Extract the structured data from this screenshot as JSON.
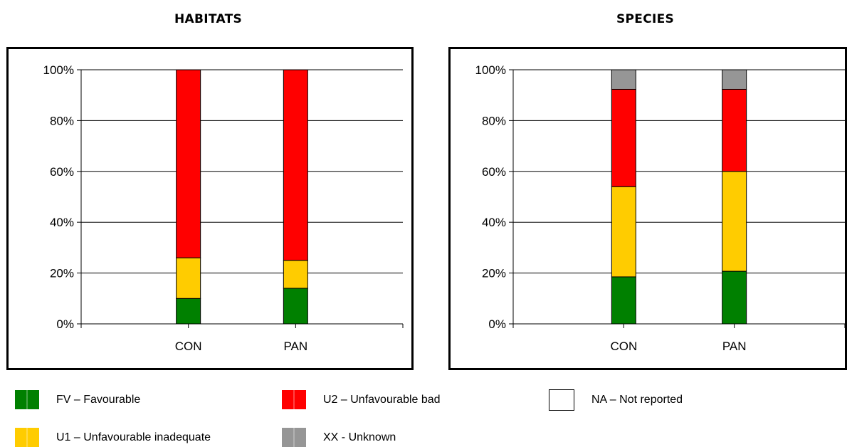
{
  "colors": {
    "FV": "#008000",
    "U1": "#ffcc00",
    "U2": "#ff0000",
    "XX": "#969696",
    "NA": "#ffffff"
  },
  "chart_data": [
    {
      "type": "bar",
      "stacked": true,
      "title": "HABITATS",
      "categories": [
        "CON",
        "PAN"
      ],
      "ylim": [
        0,
        100
      ],
      "yticks": [
        "0%",
        "20%",
        "40%",
        "60%",
        "80%",
        "100%"
      ],
      "grid": true,
      "series": [
        {
          "name": "FV – Favourable",
          "key": "FV",
          "values": [
            10,
            14
          ]
        },
        {
          "name": "U1 – Unfavourable inadequate",
          "key": "U1",
          "values": [
            16,
            11
          ]
        },
        {
          "name": "U2 – Unfavourable bad",
          "key": "U2",
          "values": [
            74,
            75
          ]
        },
        {
          "name": "XX - Unknown",
          "key": "XX",
          "values": [
            0,
            0
          ]
        },
        {
          "name": "NA – Not reported",
          "key": "NA",
          "values": [
            0,
            0
          ]
        }
      ]
    },
    {
      "type": "bar",
      "stacked": true,
      "title": "SPECIES",
      "categories": [
        "CON",
        "PAN"
      ],
      "ylim": [
        0,
        100
      ],
      "yticks": [
        "0%",
        "20%",
        "40%",
        "60%",
        "80%",
        "100%"
      ],
      "grid": true,
      "series": [
        {
          "name": "FV – Favourable",
          "key": "FV",
          "values": [
            18.5,
            20.7
          ]
        },
        {
          "name": "U1 – Unfavourable inadequate",
          "key": "U1",
          "values": [
            35.5,
            39.3
          ]
        },
        {
          "name": "U2 – Unfavourable bad",
          "key": "U2",
          "values": [
            38.3,
            32.3
          ]
        },
        {
          "name": "XX - Unknown",
          "key": "XX",
          "values": [
            7.7,
            7.7
          ]
        },
        {
          "name": "NA – Not reported",
          "key": "NA",
          "values": [
            0,
            0
          ]
        }
      ]
    }
  ],
  "legend": [
    {
      "key": "FV",
      "label": "FV – Favourable"
    },
    {
      "key": "U2",
      "label": "U2 – Unfavourable bad"
    },
    {
      "key": "NA",
      "label": "NA – Not reported"
    },
    {
      "key": "U1",
      "label": "U1 – Unfavourable inadequate"
    },
    {
      "key": "XX",
      "label": "XX - Unknown"
    }
  ]
}
